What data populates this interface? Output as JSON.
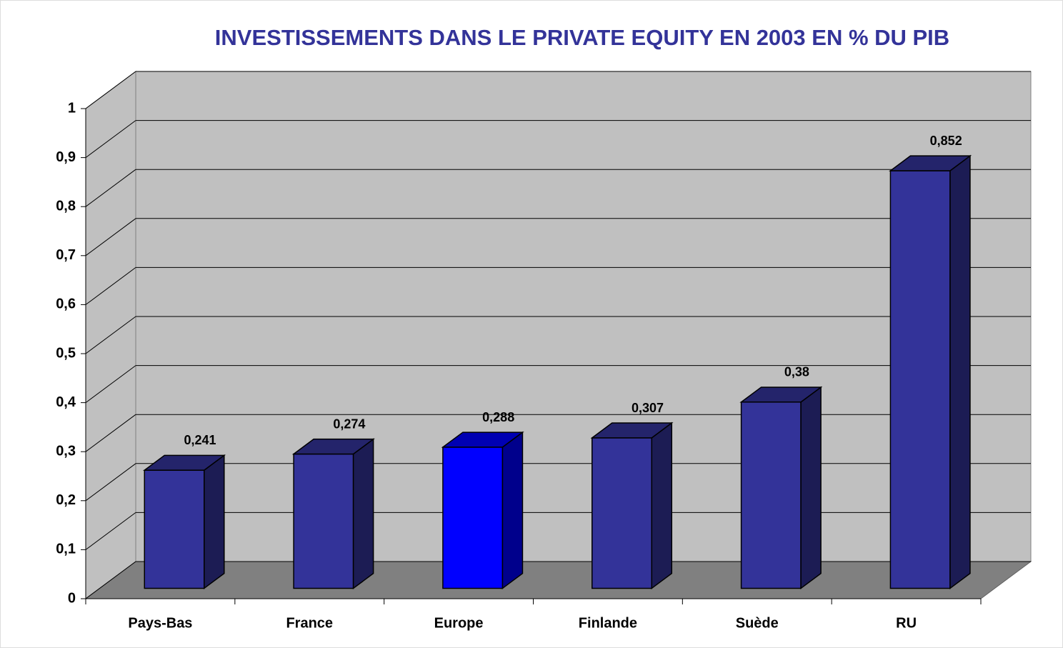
{
  "chart_data": {
    "type": "bar3d",
    "title": "INVESTISSEMENTS DANS LE PRIVATE EQUITY EN 2003 EN % DU PIB",
    "categories": [
      "Pays-Bas",
      "France",
      "Europe",
      "Finlande",
      "Suède",
      "RU"
    ],
    "values": [
      0.241,
      0.274,
      0.288,
      0.307,
      0.38,
      0.852
    ],
    "value_labels": [
      "0,241",
      "0,274",
      "0,288",
      "0,307",
      "0,38",
      "0,852"
    ],
    "colors": [
      "#333399",
      "#333399",
      "#0000ff",
      "#333399",
      "#333399",
      "#333399"
    ],
    "ylim": [
      0,
      1
    ],
    "yticks": [
      0,
      {
        "value": 0.1,
        "label": "0,1"
      },
      {
        "value": 0.2,
        "label": "0,2"
      },
      {
        "value": 0.3,
        "label": "0,3"
      },
      {
        "value": 0.4,
        "label": "0,4"
      },
      {
        "value": 0.5,
        "label": "0,5"
      },
      {
        "value": 0.6,
        "label": "0,6"
      },
      {
        "value": 0.7,
        "label": "0,7"
      },
      {
        "value": 0.8,
        "label": "0,8"
      },
      {
        "value": 0.9,
        "label": "0,9"
      },
      1
    ],
    "grid": true
  }
}
